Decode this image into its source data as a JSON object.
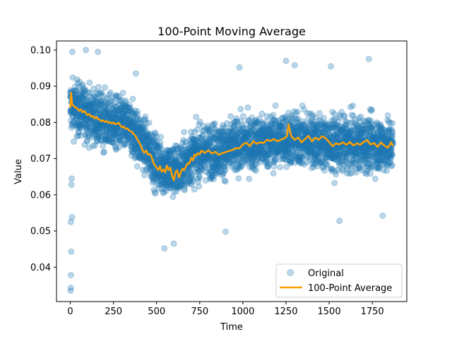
{
  "chart_data": {
    "type": "scatter",
    "title": "100-Point Moving Average",
    "xlabel": "Time",
    "ylabel": "Value",
    "xlim": [
      -80,
      1950
    ],
    "ylim": [
      0.0305,
      0.1025
    ],
    "x_ticks": [
      0,
      250,
      500,
      750,
      1000,
      1250,
      1500,
      1750
    ],
    "x_tick_labels": [
      "0",
      "250",
      "500",
      "750",
      "1000",
      "1250",
      "1500",
      "1750"
    ],
    "y_ticks": [
      0.04,
      0.05,
      0.06,
      0.07,
      0.08,
      0.09,
      0.1
    ],
    "y_tick_labels": [
      "0.04",
      "0.05",
      "0.06",
      "0.07",
      "0.08",
      "0.09",
      "0.10"
    ],
    "grid": false,
    "legend_position": "lower-right",
    "n_points": 1870,
    "series": [
      {
        "name": "Original",
        "kind": "scatter",
        "color": "#1f77b4",
        "alpha": 0.3,
        "mean_profile": {
          "x": [
            0,
            50,
            100,
            150,
            200,
            250,
            300,
            350,
            400,
            450,
            500,
            550,
            600,
            650,
            700,
            750,
            800,
            900,
            1000,
            1100,
            1200,
            1250,
            1300,
            1400,
            1450,
            1500,
            1600,
            1700,
            1750,
            1869
          ],
          "y": [
            0.0845,
            0.0835,
            0.0825,
            0.0812,
            0.0805,
            0.0798,
            0.0795,
            0.0782,
            0.0755,
            0.0725,
            0.0688,
            0.0672,
            0.0665,
            0.0675,
            0.0705,
            0.0715,
            0.072,
            0.0725,
            0.0738,
            0.0745,
            0.075,
            0.0755,
            0.0752,
            0.0752,
            0.0745,
            0.074,
            0.074,
            0.074,
            0.074,
            0.0735
          ]
        },
        "spread": 0.0085,
        "outliers": [
          {
            "x": 2,
            "y": 0.0335
          },
          {
            "x": 3,
            "y": 0.0343
          },
          {
            "x": 4,
            "y": 0.0378
          },
          {
            "x": 5,
            "y": 0.0443
          },
          {
            "x": 3,
            "y": 0.0525
          },
          {
            "x": 10,
            "y": 0.0538
          },
          {
            "x": 6,
            "y": 0.0628
          },
          {
            "x": 8,
            "y": 0.0645
          },
          {
            "x": 12,
            "y": 0.0995
          },
          {
            "x": 90,
            "y": 0.1
          },
          {
            "x": 160,
            "y": 0.0995
          },
          {
            "x": 380,
            "y": 0.0935
          },
          {
            "x": 545,
            "y": 0.0452
          },
          {
            "x": 600,
            "y": 0.0465
          },
          {
            "x": 900,
            "y": 0.0498
          },
          {
            "x": 980,
            "y": 0.0952
          },
          {
            "x": 1250,
            "y": 0.097
          },
          {
            "x": 1300,
            "y": 0.0958
          },
          {
            "x": 1510,
            "y": 0.0955
          },
          {
            "x": 1560,
            "y": 0.0528
          },
          {
            "x": 1730,
            "y": 0.0975
          },
          {
            "x": 1810,
            "y": 0.0542
          }
        ]
      },
      {
        "name": "100-Point Average",
        "kind": "line",
        "color": "#ff9f00",
        "x": [
          0,
          5,
          10,
          20,
          30,
          40,
          50,
          60,
          70,
          80,
          90,
          100,
          110,
          120,
          130,
          140,
          150,
          160,
          170,
          180,
          190,
          200,
          210,
          220,
          230,
          240,
          250,
          260,
          270,
          280,
          290,
          300,
          310,
          320,
          330,
          340,
          350,
          360,
          370,
          380,
          390,
          400,
          410,
          420,
          430,
          440,
          450,
          460,
          470,
          480,
          490,
          500,
          510,
          520,
          530,
          540,
          550,
          560,
          570,
          580,
          590,
          600,
          610,
          620,
          630,
          640,
          650,
          660,
          670,
          680,
          690,
          700,
          710,
          720,
          730,
          740,
          750,
          760,
          780,
          800,
          820,
          840,
          860,
          880,
          900,
          920,
          940,
          960,
          980,
          1000,
          1020,
          1040,
          1060,
          1080,
          1100,
          1120,
          1140,
          1160,
          1180,
          1200,
          1220,
          1240,
          1255,
          1265,
          1280,
          1300,
          1320,
          1340,
          1360,
          1380,
          1400,
          1420,
          1440,
          1460,
          1480,
          1500,
          1520,
          1540,
          1560,
          1580,
          1600,
          1620,
          1640,
          1660,
          1680,
          1700,
          1720,
          1740,
          1760,
          1780,
          1800,
          1820,
          1840,
          1860,
          1869
        ],
        "y": [
          0.084,
          0.0882,
          0.0851,
          0.0845,
          0.0842,
          0.0838,
          0.0832,
          0.0836,
          0.0828,
          0.0832,
          0.0826,
          0.082,
          0.0823,
          0.0816,
          0.0818,
          0.0811,
          0.0815,
          0.0809,
          0.0808,
          0.0803,
          0.0806,
          0.0801,
          0.0804,
          0.0799,
          0.0801,
          0.0797,
          0.08,
          0.0795,
          0.0796,
          0.0799,
          0.0792,
          0.0786,
          0.0789,
          0.0782,
          0.0784,
          0.0778,
          0.0776,
          0.0772,
          0.0766,
          0.0761,
          0.0752,
          0.0744,
          0.0734,
          0.0722,
          0.0716,
          0.0723,
          0.0711,
          0.0713,
          0.0706,
          0.069,
          0.0681,
          0.0676,
          0.0668,
          0.0679,
          0.0664,
          0.067,
          0.0662,
          0.0681,
          0.0668,
          0.0675,
          0.0652,
          0.064,
          0.0663,
          0.0668,
          0.0648,
          0.0661,
          0.0672,
          0.0668,
          0.0678,
          0.0687,
          0.0686,
          0.0702,
          0.0695,
          0.0711,
          0.0708,
          0.0715,
          0.0712,
          0.0722,
          0.0716,
          0.0723,
          0.0714,
          0.0719,
          0.071,
          0.0715,
          0.0718,
          0.0721,
          0.0724,
          0.0729,
          0.0728,
          0.0739,
          0.0744,
          0.0734,
          0.0748,
          0.0741,
          0.0745,
          0.0743,
          0.0752,
          0.0749,
          0.0754,
          0.0748,
          0.0752,
          0.0756,
          0.0762,
          0.0795,
          0.0762,
          0.0752,
          0.0758,
          0.0745,
          0.0754,
          0.0763,
          0.0748,
          0.0758,
          0.0752,
          0.0762,
          0.0756,
          0.0746,
          0.0734,
          0.0742,
          0.0739,
          0.0745,
          0.0738,
          0.0746,
          0.0736,
          0.0742,
          0.0738,
          0.0746,
          0.0751,
          0.0739,
          0.0743,
          0.0732,
          0.0744,
          0.0736,
          0.073,
          0.0745,
          0.0734
        ]
      }
    ]
  }
}
